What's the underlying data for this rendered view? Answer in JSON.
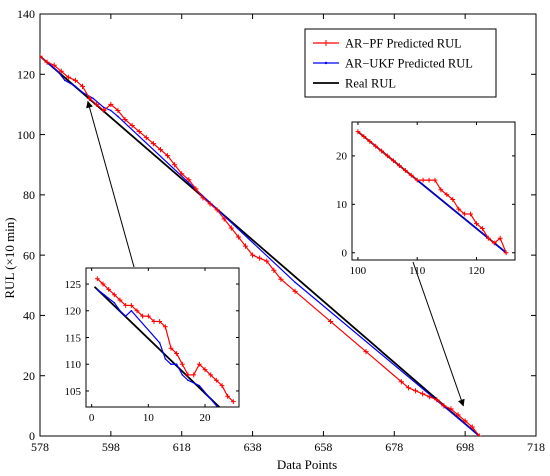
{
  "chart_data": [
    {
      "type": "line",
      "title": "",
      "xlabel": "Data Points",
      "ylabel": "RUL (×10 min)",
      "xlim": [
        578,
        718
      ],
      "ylim": [
        0,
        140
      ],
      "x_ticks": [
        578,
        598,
        618,
        638,
        658,
        678,
        698,
        718
      ],
      "y_ticks": [
        0,
        20,
        40,
        60,
        80,
        100,
        120,
        140
      ],
      "x_tick_labels": [
        "578",
        "598",
        "618",
        "638",
        "658",
        "678",
        "698",
        "718"
      ],
      "y_tick_labels": [
        "0",
        "20",
        "40",
        "60",
        "80",
        "100",
        "120",
        "140"
      ],
      "grid": false,
      "legend_position": "top-right",
      "series": [
        {
          "name": "AR−PF Predicted RUL",
          "color": "#ff0000",
          "marker": "plus",
          "points": [
            [
              578,
              126
            ],
            [
              580,
              124
            ],
            [
              582,
              123
            ],
            [
              584,
              121
            ],
            [
              586,
              119
            ],
            [
              588,
              118
            ],
            [
              590,
              116
            ],
            [
              592,
              112
            ],
            [
              594,
              110
            ],
            [
              596,
              108
            ],
            [
              598,
              110
            ],
            [
              600,
              108
            ],
            [
              602,
              105
            ],
            [
              604,
              103
            ],
            [
              606,
              101
            ],
            [
              608,
              99
            ],
            [
              610,
              97
            ],
            [
              612,
              95
            ],
            [
              614,
              93
            ],
            [
              616,
              90
            ],
            [
              618,
              87
            ],
            [
              620,
              85
            ],
            [
              622,
              82
            ],
            [
              624,
              79
            ],
            [
              626,
              77
            ],
            [
              628,
              75
            ],
            [
              630,
              72
            ],
            [
              632,
              69
            ],
            [
              634,
              66
            ],
            [
              636,
              63
            ],
            [
              638,
              60
            ],
            [
              640,
              59
            ],
            [
              642,
              58
            ],
            [
              644,
              55
            ],
            [
              646,
              52
            ],
            [
              650,
              48
            ],
            [
              660,
              38
            ],
            [
              670,
              28
            ],
            [
              680,
              18
            ],
            [
              682,
              16
            ],
            [
              684,
              15
            ],
            [
              686,
              14
            ],
            [
              688,
              13
            ],
            [
              690,
              12
            ],
            [
              692,
              10
            ],
            [
              694,
              9
            ],
            [
              696,
              7
            ],
            [
              698,
              5
            ],
            [
              700,
              3
            ],
            [
              702,
              0
            ]
          ]
        },
        {
          "name": "AR−UKF Predicted RUL",
          "color": "#0000ff",
          "marker": "dot",
          "points": [
            [
              578,
              126
            ],
            [
              583,
              121
            ],
            [
              585,
              118
            ],
            [
              588,
              116
            ],
            [
              590,
              114
            ],
            [
              593,
              112
            ],
            [
              596,
              109
            ],
            [
              598,
              108
            ],
            [
              600,
              106
            ],
            [
              650,
              51
            ],
            [
              702,
              0
            ]
          ]
        },
        {
          "name": "Real RUL",
          "color": "#000000",
          "marker": "none",
          "points": [
            [
              578,
              126
            ],
            [
              702,
              0
            ]
          ]
        }
      ]
    },
    {
      "type": "line",
      "title": "",
      "xlabel": "",
      "ylabel": "",
      "xlim": [
        -1,
        26
      ],
      "ylim": [
        102,
        128
      ],
      "x_ticks": [
        0,
        10,
        20
      ],
      "y_ticks": [
        105,
        110,
        115,
        120,
        125
      ],
      "x_tick_labels": [
        "0",
        "10",
        "20"
      ],
      "y_tick_labels": [
        "105",
        "110",
        "115",
        "120",
        "125"
      ],
      "legend_position": "none",
      "series": [
        {
          "color": "#ff0000",
          "marker": "plus",
          "points": [
            [
              1,
              126
            ],
            [
              2,
              125
            ],
            [
              3,
              124
            ],
            [
              4,
              123
            ],
            [
              5,
              122
            ],
            [
              6,
              121
            ],
            [
              7,
              121
            ],
            [
              8,
              120
            ],
            [
              9,
              119
            ],
            [
              10,
              119
            ],
            [
              11,
              118
            ],
            [
              12,
              118
            ],
            [
              13,
              117
            ],
            [
              14,
              113
            ],
            [
              15,
              112
            ],
            [
              16,
              110
            ],
            [
              17,
              108
            ],
            [
              18,
              108
            ],
            [
              19,
              110
            ],
            [
              20,
              109
            ],
            [
              21,
              108
            ],
            [
              22,
              107
            ],
            [
              23,
              106
            ],
            [
              24,
              104
            ],
            [
              25,
              103
            ]
          ]
        },
        {
          "color": "#0000ff",
          "marker": "dot",
          "points": [
            [
              1,
              124
            ],
            [
              4,
              121.5
            ],
            [
              5,
              120
            ],
            [
              6,
              119
            ],
            [
              7,
              120
            ],
            [
              12,
              114
            ],
            [
              13,
              111
            ],
            [
              14,
              110
            ],
            [
              15,
              110
            ],
            [
              16,
              108
            ],
            [
              17,
              107
            ],
            [
              19,
              106
            ],
            [
              23,
              101
            ]
          ]
        },
        {
          "color": "#000000",
          "marker": "none",
          "points": [
            [
              0.5,
              124.5
            ],
            [
              23.5,
              101
            ]
          ]
        }
      ]
    },
    {
      "type": "line",
      "title": "",
      "xlabel": "",
      "ylabel": "",
      "xlim": [
        99,
        126.5
      ],
      "ylim": [
        -1.5,
        27
      ],
      "x_ticks": [
        100,
        110,
        120
      ],
      "y_ticks": [
        0,
        10,
        20
      ],
      "x_tick_labels": [
        "100",
        "110",
        "120"
      ],
      "y_tick_labels": [
        "0",
        "10",
        "20"
      ],
      "legend_position": "none",
      "series": [
        {
          "color": "#ff0000",
          "marker": "plus",
          "points": [
            [
              100,
              25
            ],
            [
              101,
              24
            ],
            [
              102,
              23
            ],
            [
              103,
              22
            ],
            [
              104,
              21
            ],
            [
              105,
              20
            ],
            [
              106,
              19
            ],
            [
              107,
              18
            ],
            [
              108,
              17
            ],
            [
              109,
              16
            ],
            [
              110,
              15
            ],
            [
              111,
              15
            ],
            [
              112,
              15
            ],
            [
              113,
              15
            ],
            [
              114,
              13
            ],
            [
              115,
              12
            ],
            [
              116,
              11
            ],
            [
              117,
              9
            ],
            [
              118,
              8
            ],
            [
              119,
              8
            ],
            [
              120,
              6
            ],
            [
              121,
              5
            ],
            [
              122,
              3
            ],
            [
              123,
              2
            ],
            [
              124,
              3
            ],
            [
              125,
              0
            ]
          ]
        },
        {
          "color": "#0000ff",
          "marker": "dot",
          "points": [
            [
              100,
              25
            ],
            [
              125,
              0
            ]
          ]
        },
        {
          "color": "#000000",
          "marker": "none",
          "points": [
            [
              100,
              25
            ],
            [
              125,
              0
            ]
          ]
        }
      ]
    }
  ]
}
